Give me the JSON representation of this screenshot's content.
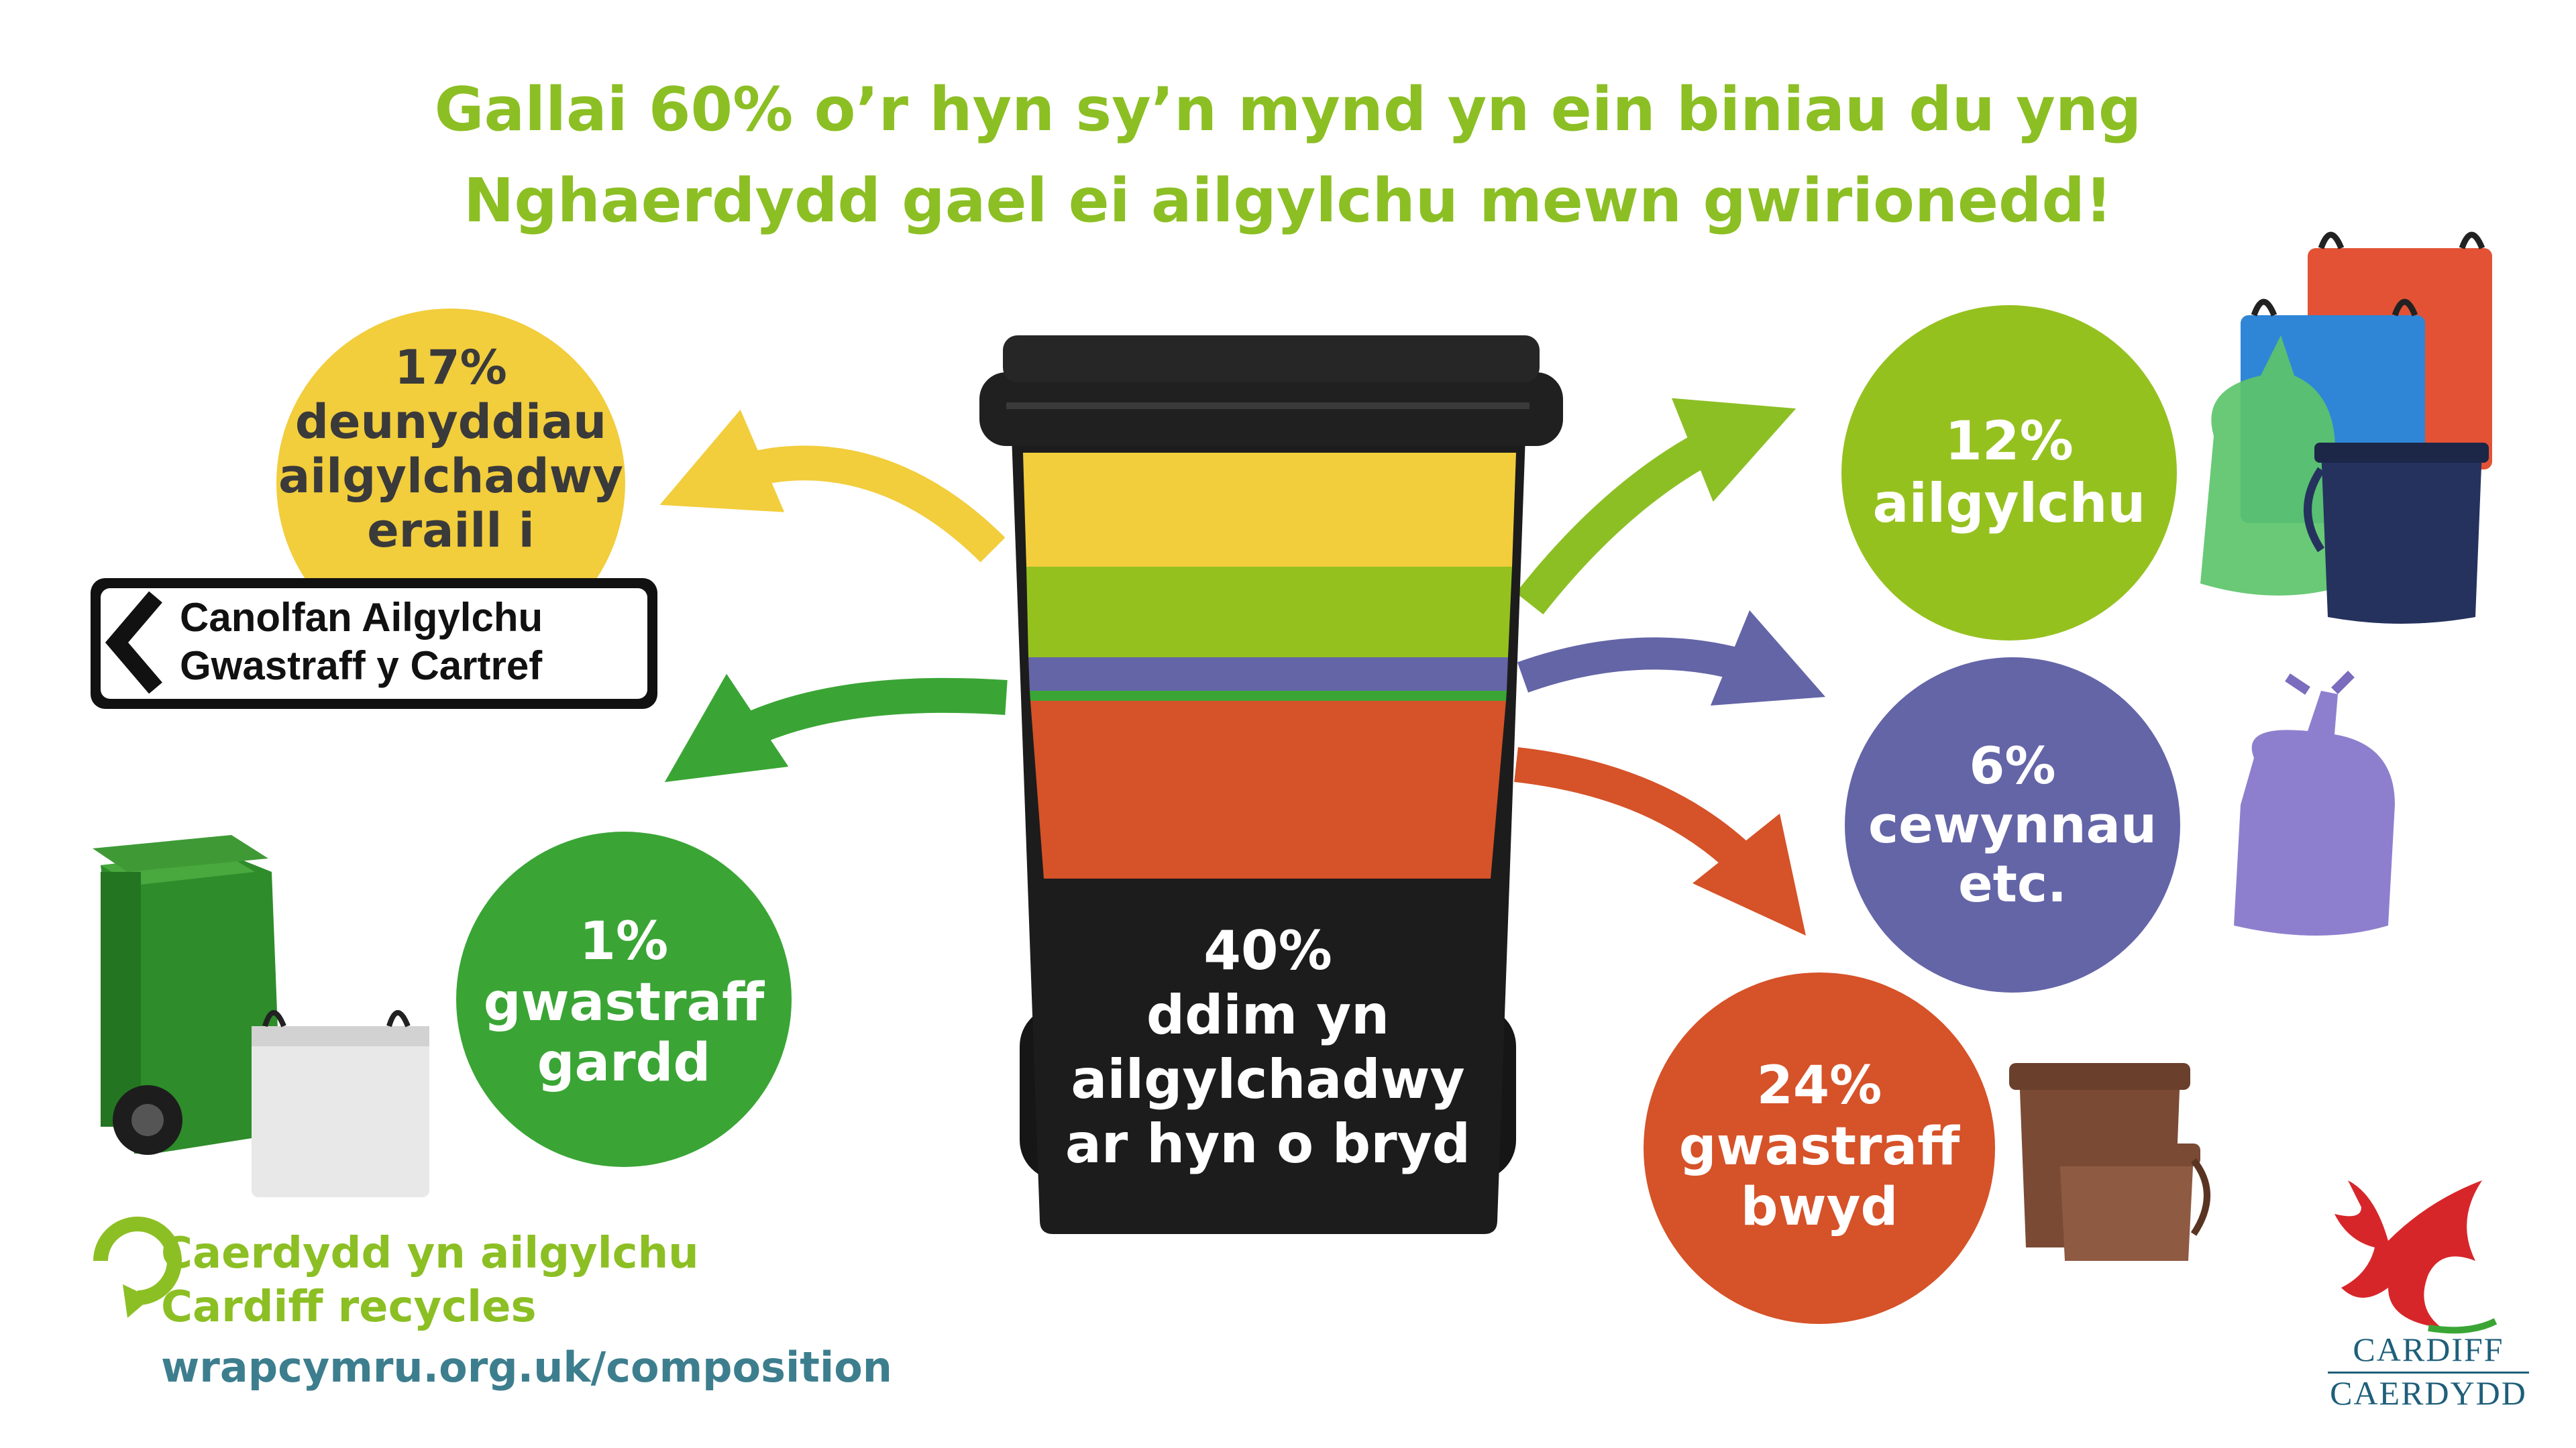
{
  "headline": {
    "line1": "Gallai 60% o’r hyn sy’n mynd yn ein biniau du yng",
    "line2": "Nghaerdydd gael ei ailgylchu mewn gwirionedd!"
  },
  "colors": {
    "accent_green": "#8cbf24",
    "recycling_green": "#95c11f",
    "garden_green": "#3aa535",
    "dry_recyclables_yellow": "#f2cd3c",
    "nappies_purple": "#6465a7",
    "food_orange": "#d65228",
    "bin_black": "#1a1a1a",
    "url_teal": "#3d7e8e"
  },
  "segments": {
    "other_recyclables": {
      "percent": "17%",
      "line1": "deunyddiau",
      "line2": "ailgylchadwy",
      "line3": "eraill i"
    },
    "recycling": {
      "percent": "12%",
      "line1": "ailgylchu"
    },
    "nappies": {
      "percent": "6%",
      "line1": "cewynnau",
      "line2": "etc."
    },
    "food_waste": {
      "percent": "24%",
      "line1": "gwastraff",
      "line2": "bwyd"
    },
    "garden_waste": {
      "percent": "1%",
      "line1": "gwastraff",
      "line2": "gardd"
    },
    "not_recyclable": {
      "percent": "40%",
      "line1": "ddim yn",
      "line2": "ailgylchadwy",
      "line3": "ar hyn o bryd"
    }
  },
  "sign": {
    "line1": "Canolfan Ailgylchu",
    "line2": "Gwastraff y Cartref"
  },
  "footer": {
    "line1": "Caerdydd yn ailgylchu",
    "line2": "Cardiff recycles",
    "url": "wrapcymru.org.uk/composition"
  },
  "logo": {
    "line1": "CARDIFF",
    "line2": "CAERDYDD"
  },
  "icons": [
    "recycle-arrow-icon",
    "chevron-left-icon",
    "welsh-dragon-icon"
  ]
}
